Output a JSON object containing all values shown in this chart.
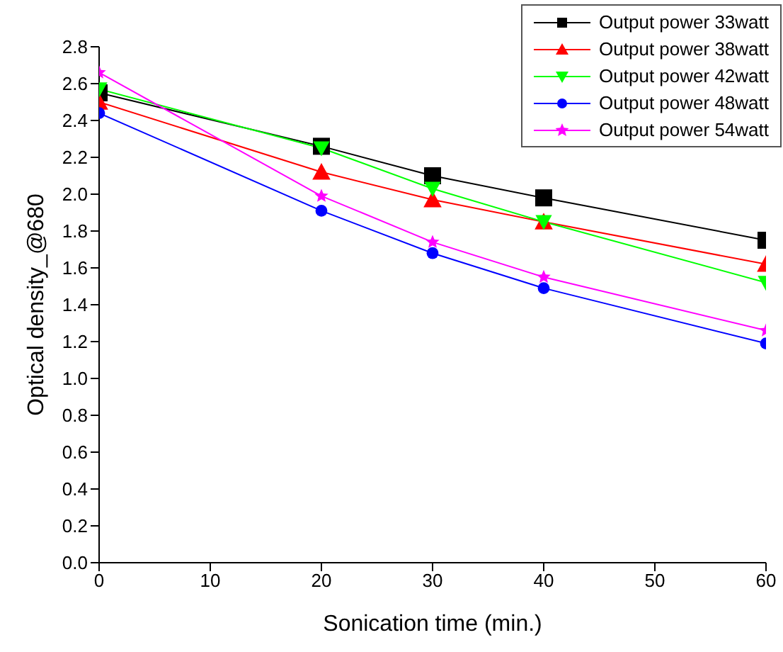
{
  "chart_data": {
    "type": "line",
    "xlabel": "Sonication time (min.)",
    "ylabel": "Optical density_@680",
    "x": [
      0,
      20,
      30,
      40,
      60
    ],
    "series": [
      {
        "name": "Output power 33watt",
        "color": "#000000",
        "marker": "square",
        "values": [
          2.55,
          2.26,
          2.1,
          1.98,
          1.75
        ]
      },
      {
        "name": "Output power 38watt",
        "color": "#ff0000",
        "marker": "triangle",
        "values": [
          2.5,
          2.12,
          1.97,
          1.85,
          1.62
        ]
      },
      {
        "name": "Output power 42watt",
        "color": "#00ff00",
        "marker": "triangle-down",
        "values": [
          2.57,
          2.25,
          2.03,
          1.85,
          1.52
        ]
      },
      {
        "name": "Output power 48watt",
        "color": "#0000ff",
        "marker": "circle",
        "values": [
          2.44,
          1.91,
          1.68,
          1.49,
          1.19
        ]
      },
      {
        "name": "Output power 54watt",
        "color": "#ff00ff",
        "marker": "star",
        "values": [
          2.66,
          1.99,
          1.74,
          1.55,
          1.26
        ]
      }
    ],
    "xlim": [
      0,
      60
    ],
    "xticks": [
      0,
      10,
      20,
      30,
      40,
      50,
      60
    ],
    "ylim": [
      0,
      2.8
    ],
    "yticks": [
      {
        "value": 0,
        "label": "0.0"
      },
      0.2,
      0.4,
      0.6,
      0.8,
      {
        "value": 1,
        "label": "1.0"
      },
      1.2,
      1.4,
      1.6,
      1.8,
      {
        "value": 2,
        "label": "2.0"
      },
      2.2,
      2.4,
      2.6,
      2.8
    ],
    "grid": false,
    "legend": "top right"
  }
}
